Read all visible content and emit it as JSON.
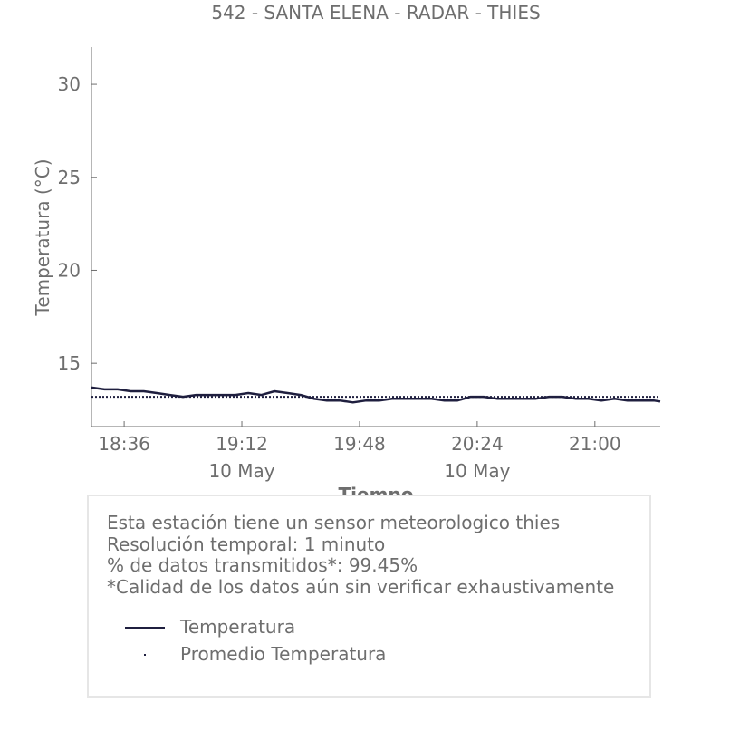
{
  "chart_data": {
    "type": "line",
    "title": "542 - SANTA ELENA - RADAR - THIES",
    "xlabel": "Tiempo",
    "ylabel": "Temperatura (°C)",
    "ylim": [
      11.6,
      32.0
    ],
    "xlim": [
      "18:26",
      "21:20"
    ],
    "yticks": [
      15,
      20,
      25,
      30
    ],
    "xticks": [
      {
        "time": "18:36",
        "label": "18:36",
        "sublabel": ""
      },
      {
        "time": "19:12",
        "label": "19:12",
        "sublabel": "10 May"
      },
      {
        "time": "19:48",
        "label": "19:48",
        "sublabel": ""
      },
      {
        "time": "20:24",
        "label": "20:24",
        "sublabel": "10 May"
      },
      {
        "time": "21:00",
        "label": "21:00",
        "sublabel": ""
      }
    ],
    "grid": false,
    "series": [
      {
        "name": "Temperatura",
        "style": "solid",
        "color": "#1f1f3f",
        "x": [
          "18:26",
          "18:30",
          "18:34",
          "18:38",
          "18:42",
          "18:46",
          "18:50",
          "18:54",
          "18:58",
          "19:02",
          "19:06",
          "19:10",
          "19:14",
          "19:18",
          "19:22",
          "19:26",
          "19:30",
          "19:34",
          "19:38",
          "19:42",
          "19:46",
          "19:50",
          "19:54",
          "19:58",
          "20:02",
          "20:06",
          "20:10",
          "20:14",
          "20:18",
          "20:22",
          "20:26",
          "20:30",
          "20:34",
          "20:38",
          "20:42",
          "20:46",
          "20:50",
          "20:54",
          "20:58",
          "21:02",
          "21:06",
          "21:10",
          "21:14",
          "21:18",
          "21:20"
        ],
        "values": [
          13.7,
          13.6,
          13.6,
          13.5,
          13.5,
          13.4,
          13.3,
          13.2,
          13.3,
          13.3,
          13.3,
          13.3,
          13.4,
          13.3,
          13.5,
          13.4,
          13.3,
          13.1,
          13.0,
          13.0,
          12.9,
          13.0,
          13.0,
          13.1,
          13.1,
          13.1,
          13.1,
          13.0,
          13.0,
          13.2,
          13.2,
          13.1,
          13.1,
          13.1,
          13.1,
          13.2,
          13.2,
          13.1,
          13.1,
          13.0,
          13.1,
          13.0,
          13.0,
          13.0,
          12.95
        ]
      },
      {
        "name": "Promedio Temperatura",
        "style": "dotted",
        "color": "#1f1f3f",
        "x": [
          "18:26",
          "21:20"
        ],
        "values": [
          13.2,
          13.2
        ]
      }
    ]
  },
  "info": {
    "line1": "Esta estación tiene un sensor meteorologico thies",
    "line2": "Resolución temporal: 1 minuto",
    "line3": "% de datos transmitidos*: 99.45%",
    "line4": "*Calidad de los datos aún sin verificar exhaustivamente"
  },
  "legend": {
    "items": [
      "Temperatura",
      "Promedio Temperatura"
    ]
  },
  "colors": {
    "text": "#6e6e6e",
    "series": "#1f1f3f",
    "box_border": "#e6e6e6"
  }
}
